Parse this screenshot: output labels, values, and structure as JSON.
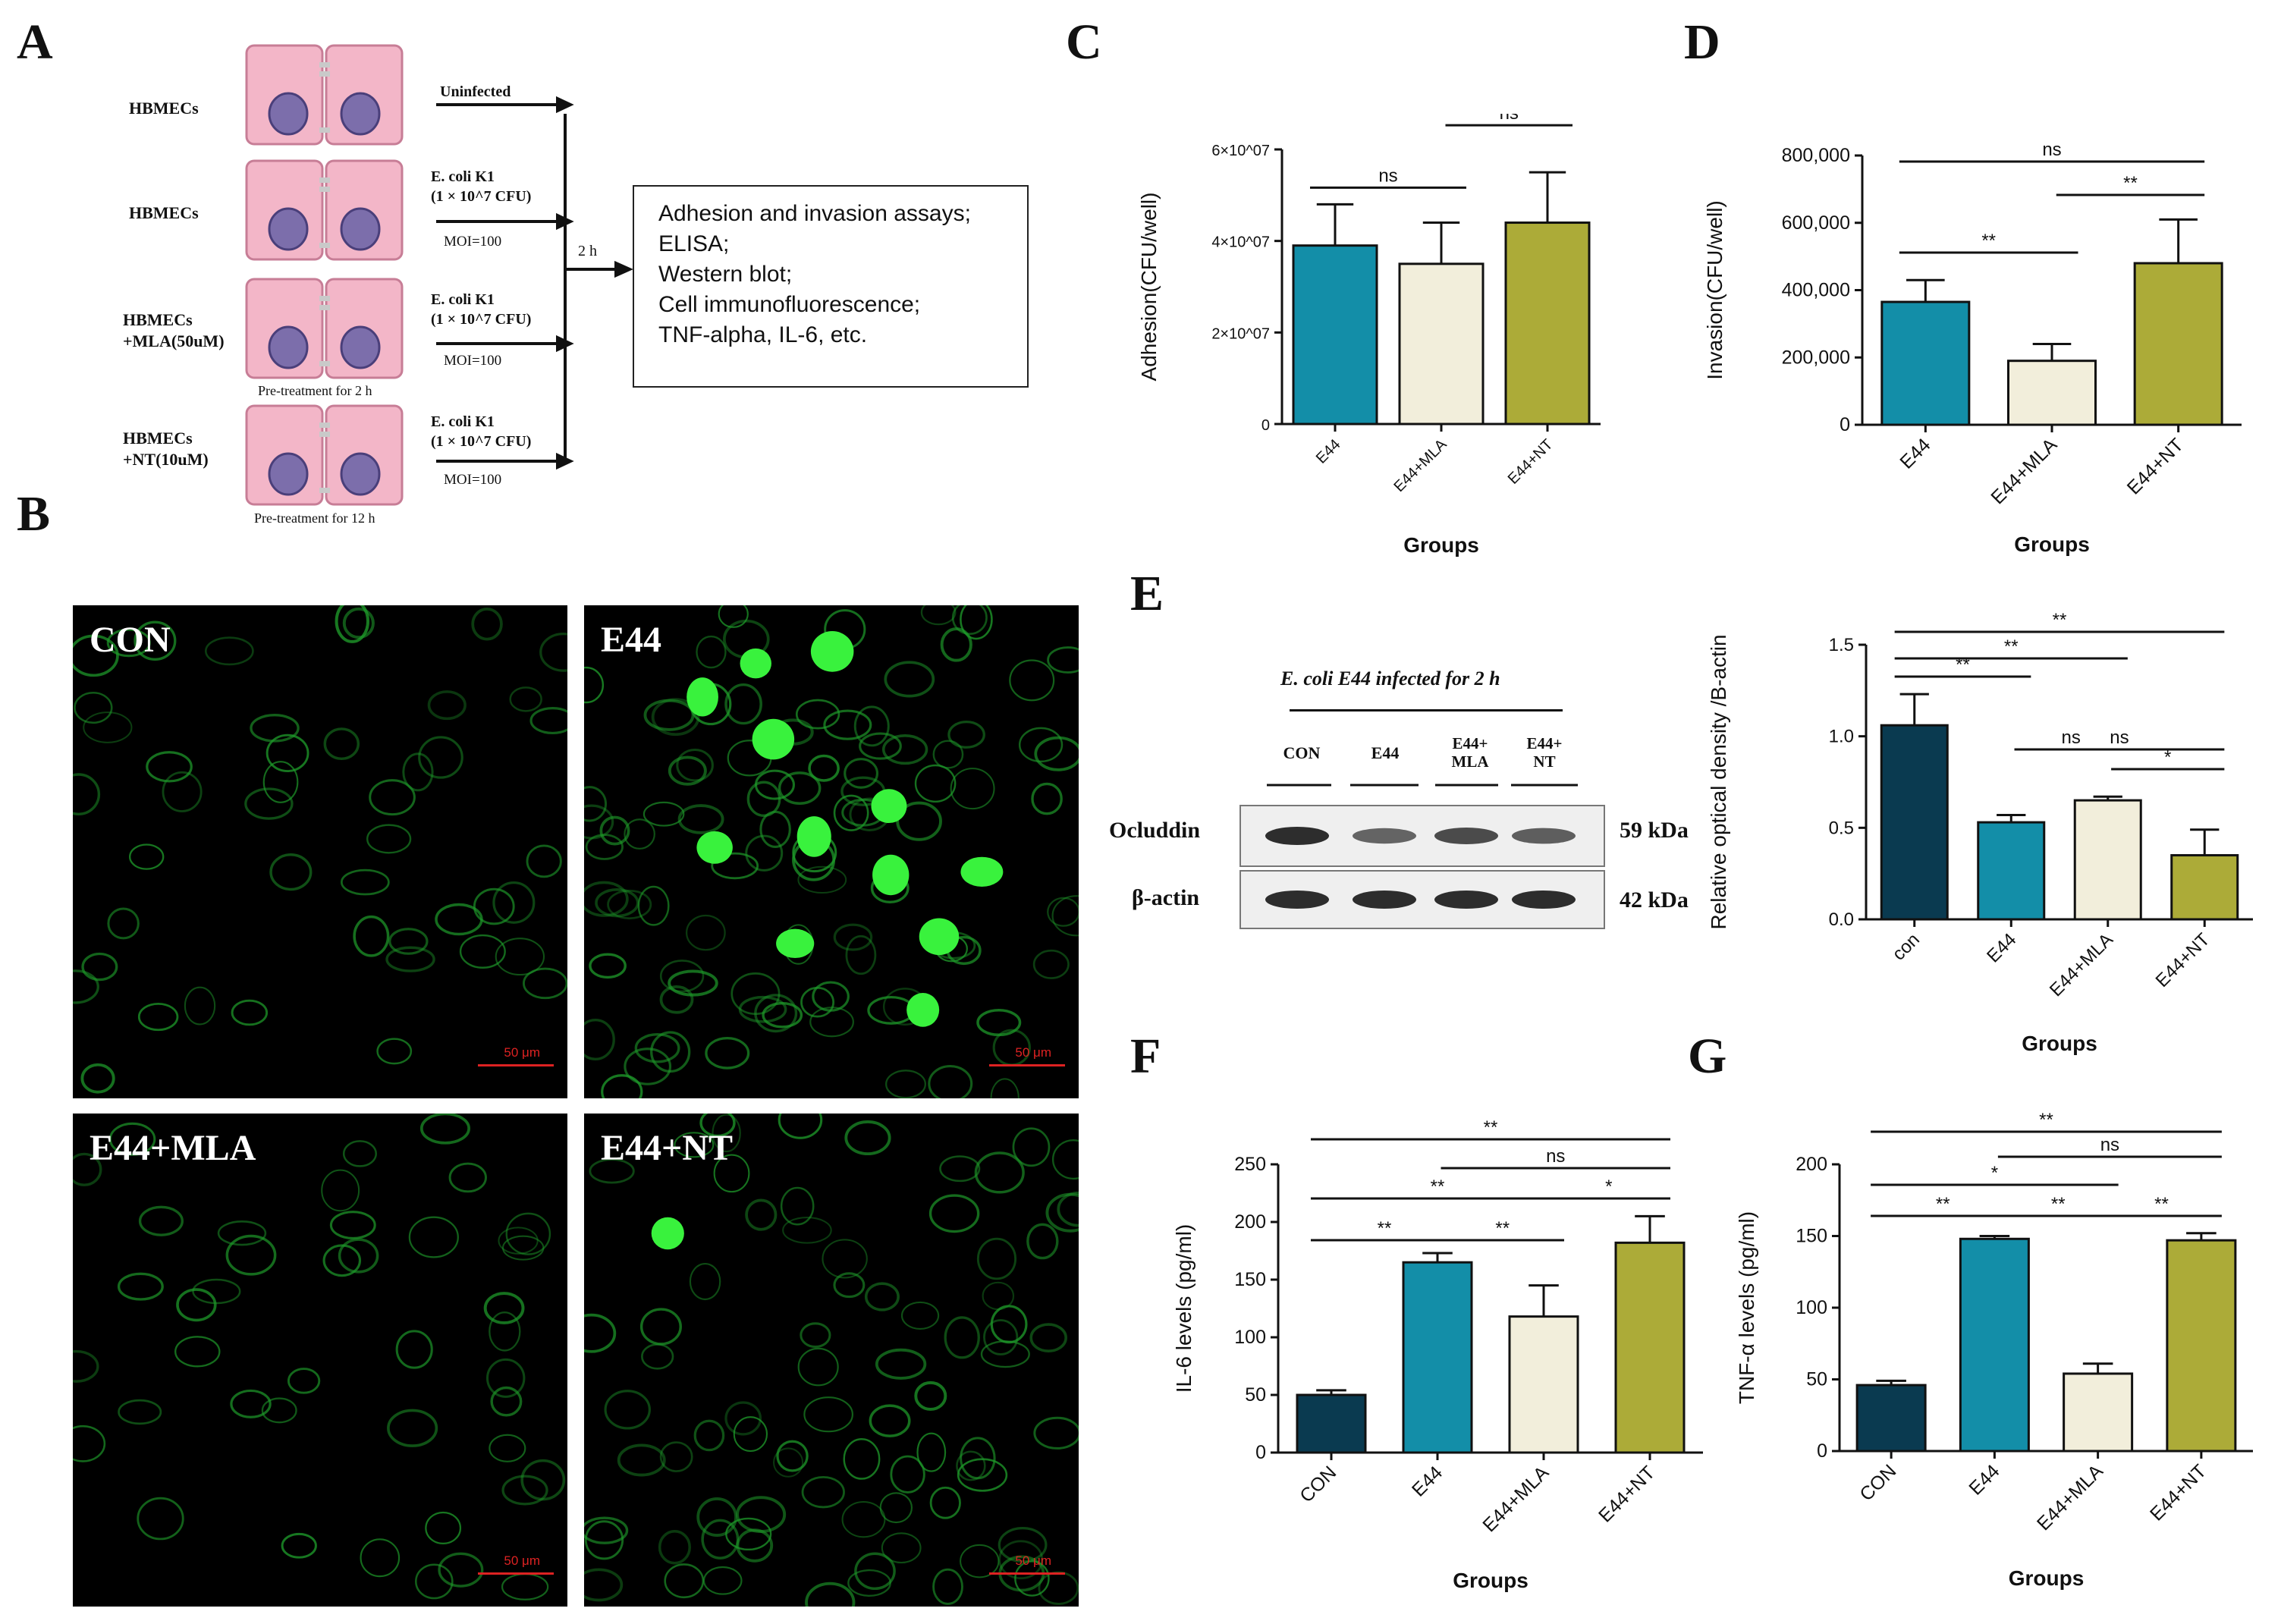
{
  "panels": {
    "A": {
      "label": "A",
      "rows": [
        {
          "cell": "HBMECs",
          "arrow_top": "Uninfected",
          "arrow_mid": "",
          "arrow_bot": "",
          "note": ""
        },
        {
          "cell": "HBMECs",
          "arrow_top": "E. coli K1",
          "arrow_mid": "(1 × 10^7 CFU)",
          "arrow_bot": "MOI=100",
          "note": ""
        },
        {
          "cell": "HBMECs +MLA(50uM)",
          "arrow_top": "E. coli K1",
          "arrow_mid": "(1 × 10^7 CFU)",
          "arrow_bot": "MOI=100",
          "note": "Pre-treatment for 2 h"
        },
        {
          "cell": "HBMECs +NT(10uM)",
          "arrow_top": "E. coli K1",
          "arrow_mid": "(1 × 10^7 CFU)",
          "arrow_bot": "MOI=100",
          "note": "Pre-treatment for 12 h"
        }
      ],
      "time": "2 h",
      "assays": [
        "Adhesion and invasion assays;",
        "ELISA;",
        "Western blot;",
        "Cell immunofluorescence;",
        "TNF-alpha, IL-6, etc."
      ]
    },
    "B": {
      "label": "B",
      "images": [
        {
          "title": "CON",
          "scale": "50 μm"
        },
        {
          "title": "E44",
          "scale": "50 μm"
        },
        {
          "title": "E44+MLA",
          "scale": "50 μm"
        },
        {
          "title": "E44+NT",
          "scale": "50 μm"
        }
      ]
    },
    "C": {
      "label": "C"
    },
    "D": {
      "label": "D"
    },
    "E": {
      "label": "E",
      "blot": {
        "title": "E. coli E44 infected for 2 h",
        "lanes": [
          "CON",
          "E44",
          "E44+ MLA",
          "E44+ NT"
        ],
        "bands": [
          {
            "name": "Ocluddin",
            "size": "59 kDa",
            "intensity": [
              1.0,
              0.55,
              0.75,
              0.6
            ]
          },
          {
            "name": "β-actin",
            "size": "42 kDa",
            "intensity": [
              1.0,
              1.0,
              1.0,
              1.0
            ]
          }
        ]
      }
    },
    "F": {
      "label": "F"
    },
    "G": {
      "label": "G"
    }
  },
  "colors": {
    "con": "#0a3a50",
    "e44": "#138ea8",
    "mla": "#f2eedb",
    "nt": "#acab38"
  },
  "chart_data": [
    {
      "id": "C",
      "type": "bar",
      "categories": [
        "E44",
        "E44+MLA",
        "E44+NT"
      ],
      "values": [
        39000000,
        35000000,
        44000000
      ],
      "errors": [
        9000000,
        9000000,
        11000000
      ],
      "xlabel": "Groups",
      "ylabel": "Adhesion(CFU/well)",
      "ylim": [
        0,
        60000000
      ],
      "yticks": [
        0,
        20000000,
        40000000,
        60000000
      ],
      "ytick_labels": [
        "0",
        "2×10^07",
        "4×10^07",
        "6×10^07"
      ],
      "colors": [
        "#138ea8",
        "#f2eedb",
        "#acab38"
      ],
      "significance": [
        {
          "from": 0,
          "to": 1,
          "label": "ns",
          "level": 0
        },
        {
          "from": 1,
          "to": 2,
          "label": "ns",
          "level": 1
        }
      ]
    },
    {
      "id": "D",
      "type": "bar",
      "categories": [
        "E44",
        "E44+MLA",
        "E44+NT"
      ],
      "values": [
        365000,
        190000,
        480000
      ],
      "errors": [
        65000,
        50000,
        130000
      ],
      "xlabel": "Groups",
      "ylabel": "Invasion(CFU/well)",
      "ylim": [
        0,
        800000
      ],
      "yticks": [
        0,
        200000,
        400000,
        600000,
        800000
      ],
      "ytick_labels": [
        "0",
        "200,000",
        "400,000",
        "600,000",
        "800,000"
      ],
      "colors": [
        "#138ea8",
        "#f2eedb",
        "#acab38"
      ],
      "significance": [
        {
          "from": 0,
          "to": 1,
          "label": "**",
          "level": 0
        },
        {
          "from": 1,
          "to": 2,
          "label": "**",
          "level": 1
        },
        {
          "from": 0,
          "to": 2,
          "label": "ns",
          "level": 2
        }
      ]
    },
    {
      "id": "E",
      "type": "bar",
      "categories": [
        "con",
        "E44",
        "E44+MLA",
        "E44+NT"
      ],
      "values": [
        1.06,
        0.53,
        0.65,
        0.35
      ],
      "errors": [
        0.17,
        0.04,
        0.02,
        0.14
      ],
      "xlabel": "Groups",
      "ylabel": "Relative optical density /B-actin",
      "ylim": [
        0,
        1.5
      ],
      "yticks": [
        0,
        0.5,
        1.0,
        1.5
      ],
      "ytick_labels": [
        "0.0",
        "0.5",
        "1.0",
        "1.5"
      ],
      "colors": [
        "#0a3a50",
        "#138ea8",
        "#f2eedb",
        "#acab38"
      ],
      "significance": [
        {
          "from": 0,
          "to": 1,
          "label": "**",
          "level": 0
        },
        {
          "from": 0,
          "to": 2,
          "label": "**",
          "level": 1
        },
        {
          "from": 0,
          "to": 3,
          "label": "**",
          "level": 2
        },
        {
          "from": 2,
          "to": 3,
          "label": "*",
          "level": -2
        },
        {
          "from": 1,
          "to": 2,
          "label": "ns",
          "level": -1
        },
        {
          "from": 1,
          "to": 3,
          "label": "ns",
          "level": 0
        }
      ]
    },
    {
      "id": "F",
      "type": "bar",
      "categories": [
        "CON",
        "E44",
        "E44+MLA",
        "E44+NT"
      ],
      "values": [
        50,
        165,
        118,
        182
      ],
      "errors": [
        4,
        8,
        27,
        23
      ],
      "xlabel": "Groups",
      "ylabel": "IL-6 levels (pg/ml)",
      "ylim": [
        0,
        250
      ],
      "yticks": [
        0,
        50,
        100,
        150,
        200,
        250
      ],
      "ytick_labels": [
        "0",
        "50",
        "100",
        "150",
        "200",
        "250"
      ],
      "colors": [
        "#0a3a50",
        "#138ea8",
        "#f2eedb",
        "#acab38"
      ],
      "significance": [
        {
          "from": 0,
          "to": 1,
          "label": "**",
          "level": 0
        },
        {
          "from": 1,
          "to": 2,
          "label": "**",
          "level": 0
        },
        {
          "from": 2,
          "to": 3,
          "label": "*",
          "level": 1
        },
        {
          "from": 0,
          "to": 2,
          "label": "**",
          "level": 1
        },
        {
          "from": 1,
          "to": 3,
          "label": "ns",
          "level": 2
        },
        {
          "from": 0,
          "to": 3,
          "label": "**",
          "level": 3
        }
      ]
    },
    {
      "id": "G",
      "type": "bar",
      "categories": [
        "CON",
        "E44",
        "E44+MLA",
        "E44+NT"
      ],
      "values": [
        46,
        148,
        54,
        147
      ],
      "errors": [
        3,
        2,
        7,
        5
      ],
      "xlabel": "Groups",
      "ylabel": "TNF-α levels (pg/ml)",
      "ylim": [
        0,
        200
      ],
      "yticks": [
        0,
        50,
        100,
        150,
        200
      ],
      "ytick_labels": [
        "0",
        "50",
        "100",
        "150",
        "200"
      ],
      "colors": [
        "#0a3a50",
        "#138ea8",
        "#f2eedb",
        "#acab38"
      ],
      "significance": [
        {
          "from": 0,
          "to": 1,
          "label": "**",
          "level": 0
        },
        {
          "from": 1,
          "to": 2,
          "label": "**",
          "level": 0
        },
        {
          "from": 2,
          "to": 3,
          "label": "**",
          "level": 0
        },
        {
          "from": 0,
          "to": 2,
          "label": "*",
          "level": 1
        },
        {
          "from": 1,
          "to": 3,
          "label": "ns",
          "level": 2
        },
        {
          "from": 0,
          "to": 3,
          "label": "**",
          "level": 3
        }
      ]
    }
  ]
}
